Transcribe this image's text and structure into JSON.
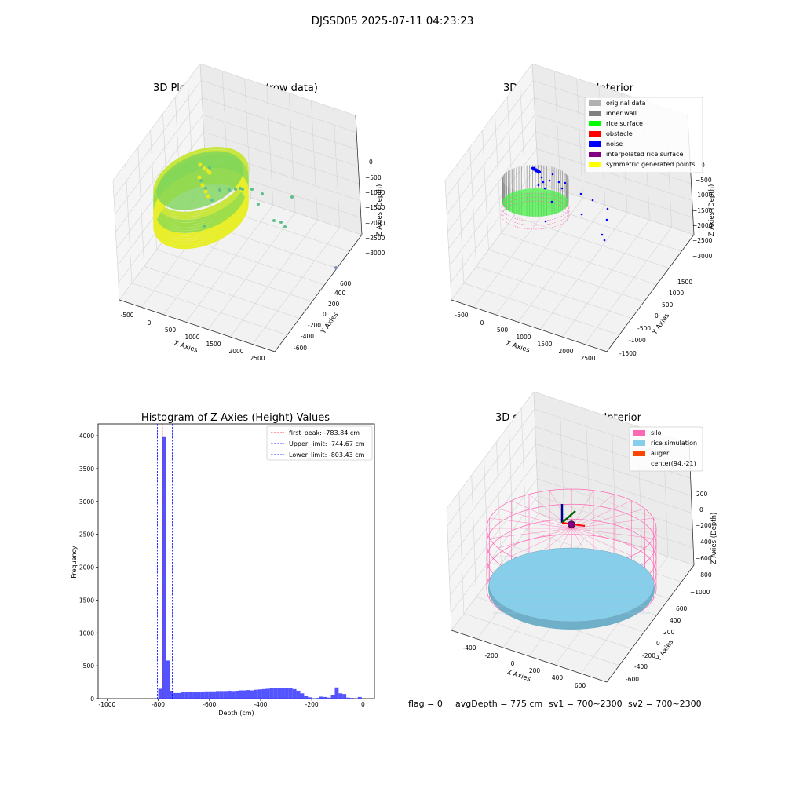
{
  "suptitle": "DJSSD05 2025-07-11 04:23:23",
  "footer": {
    "flag": "flag = 0",
    "avg_depth": "avgDepth = 775 cm",
    "sv1": "sv1 = 700~2300",
    "sv2": "sv2 = 700~2300"
  },
  "colors": {
    "original": "#b0b0b0",
    "inner_wall": "#808080",
    "rice_surface": "#00ff00",
    "obstacle": "#ff0000",
    "noise": "#0000ff",
    "interpolated": "#800080",
    "symmetric": "#ffff00",
    "silo": "#ff69b4",
    "rice_sim": "#87ceeb",
    "auger": "#ff4500",
    "hist_bar": "#4040ff"
  },
  "chart_data": [
    {
      "type": "scatter",
      "title": "3D Plot of Silo Interior(row data)",
      "xlabel": "X Axies",
      "ylabel": "Y Axies",
      "zlabel": "Z Axies (Depth)",
      "xticks": [
        "-500",
        "0",
        "500",
        "1000",
        "1500",
        "2000",
        "2500"
      ],
      "yticks": [
        "-600",
        "-400",
        "-200",
        "0",
        "200",
        "400",
        "600"
      ],
      "zticks": [
        "0",
        "−500",
        "−1000",
        "−1500",
        "−2000",
        "−2500",
        "−3000"
      ],
      "xlim": [
        -650,
        2600
      ],
      "ylim": [
        -700,
        700
      ],
      "zlim": [
        -3300,
        100
      ]
    },
    {
      "type": "scatter",
      "title": "3D classify of Silo Interior",
      "xlabel": "X Axies",
      "ylabel": "Y Axies",
      "zlabel": "Z Axies (Depth)",
      "xticks": [
        "-500",
        "0",
        "500",
        "1000",
        "1500",
        "2000",
        "2500"
      ],
      "yticks": [
        "-1500",
        "-1000",
        "-500",
        "0",
        "500",
        "1000",
        "1500"
      ],
      "zticks": [
        "0",
        "−500",
        "−1000",
        "−1500",
        "−2000",
        "−2500",
        "−3000"
      ],
      "legend": [
        "original data",
        "inner wall",
        "rice surface",
        "obstacle",
        "noise",
        "interpolated rice surface",
        "symmetric generated points"
      ],
      "legend_loc": "upper right"
    },
    {
      "type": "bar",
      "title": "Histogram of Z-Axies (Height) Values",
      "xlabel": "Depth (cm)",
      "ylabel": "Frequency",
      "xlim": [
        -1035,
        45
      ],
      "ylim": [
        0,
        4180
      ],
      "xticks": [
        "-1000",
        "-800",
        "-600",
        "-400",
        "-200",
        "0"
      ],
      "yticks": [
        "0",
        "500",
        "1000",
        "1500",
        "2000",
        "2500",
        "3000",
        "3500",
        "4000"
      ],
      "bin_width": 15,
      "bins": [
        {
          "x0": -800,
          "count": 150
        },
        {
          "x0": -785,
          "count": 3980
        },
        {
          "x0": -770,
          "count": 580
        },
        {
          "x0": -755,
          "count": 120
        },
        {
          "x0": -740,
          "count": 85
        },
        {
          "x0": -725,
          "count": 85
        },
        {
          "x0": -710,
          "count": 95
        },
        {
          "x0": -695,
          "count": 95
        },
        {
          "x0": -680,
          "count": 100
        },
        {
          "x0": -665,
          "count": 95
        },
        {
          "x0": -650,
          "count": 100
        },
        {
          "x0": -635,
          "count": 100
        },
        {
          "x0": -620,
          "count": 110
        },
        {
          "x0": -605,
          "count": 110
        },
        {
          "x0": -590,
          "count": 110
        },
        {
          "x0": -575,
          "count": 115
        },
        {
          "x0": -560,
          "count": 115
        },
        {
          "x0": -545,
          "count": 115
        },
        {
          "x0": -530,
          "count": 120
        },
        {
          "x0": -515,
          "count": 115
        },
        {
          "x0": -500,
          "count": 120
        },
        {
          "x0": -485,
          "count": 125
        },
        {
          "x0": -470,
          "count": 125
        },
        {
          "x0": -455,
          "count": 130
        },
        {
          "x0": -440,
          "count": 125
        },
        {
          "x0": -425,
          "count": 135
        },
        {
          "x0": -410,
          "count": 140
        },
        {
          "x0": -395,
          "count": 145
        },
        {
          "x0": -380,
          "count": 150
        },
        {
          "x0": -365,
          "count": 155
        },
        {
          "x0": -350,
          "count": 160
        },
        {
          "x0": -335,
          "count": 160
        },
        {
          "x0": -320,
          "count": 155
        },
        {
          "x0": -305,
          "count": 165
        },
        {
          "x0": -290,
          "count": 155
        },
        {
          "x0": -275,
          "count": 145
        },
        {
          "x0": -260,
          "count": 120
        },
        {
          "x0": -245,
          "count": 80
        },
        {
          "x0": -230,
          "count": 40
        },
        {
          "x0": -215,
          "count": 20
        },
        {
          "x0": -200,
          "count": 5
        },
        {
          "x0": -185,
          "count": 10
        },
        {
          "x0": -170,
          "count": 30
        },
        {
          "x0": -155,
          "count": 25
        },
        {
          "x0": -140,
          "count": 15
        },
        {
          "x0": -125,
          "count": 60
        },
        {
          "x0": -110,
          "count": 170
        },
        {
          "x0": -95,
          "count": 80
        },
        {
          "x0": -80,
          "count": 70
        },
        {
          "x0": -65,
          "count": 15
        },
        {
          "x0": -50,
          "count": 10
        },
        {
          "x0": -35,
          "count": 0
        },
        {
          "x0": -20,
          "count": 25
        }
      ],
      "vlines": [
        {
          "x": -783.84,
          "color": "#ff0000",
          "label": "first_peak: -783.84 cm"
        },
        {
          "x": -744.67,
          "color": "#0000ff",
          "label": "Upper_limit: -744.67 cm"
        },
        {
          "x": -803.43,
          "color": "#0000ff",
          "label": "Lower_limit: -803.43 cm"
        }
      ],
      "legend_loc": "upper right"
    },
    {
      "type": "scatter",
      "title": "3D simulation of Silo Interior",
      "xlabel": "X Axies",
      "ylabel": "Y Axies",
      "zlabel": "Z Axies (Depth)",
      "xticks": [
        "-400",
        "-200",
        "0",
        "200",
        "400",
        "600"
      ],
      "yticks": [
        "-600",
        "-400",
        "-200",
        "0",
        "200",
        "400",
        "600"
      ],
      "zticks": [
        "200",
        "0",
        "−200",
        "−400",
        "−600",
        "−800",
        "−1000"
      ],
      "legend": [
        "silo",
        "rice simulation",
        "auger",
        "center(94,-21)"
      ],
      "legend_loc": "upper right"
    }
  ]
}
